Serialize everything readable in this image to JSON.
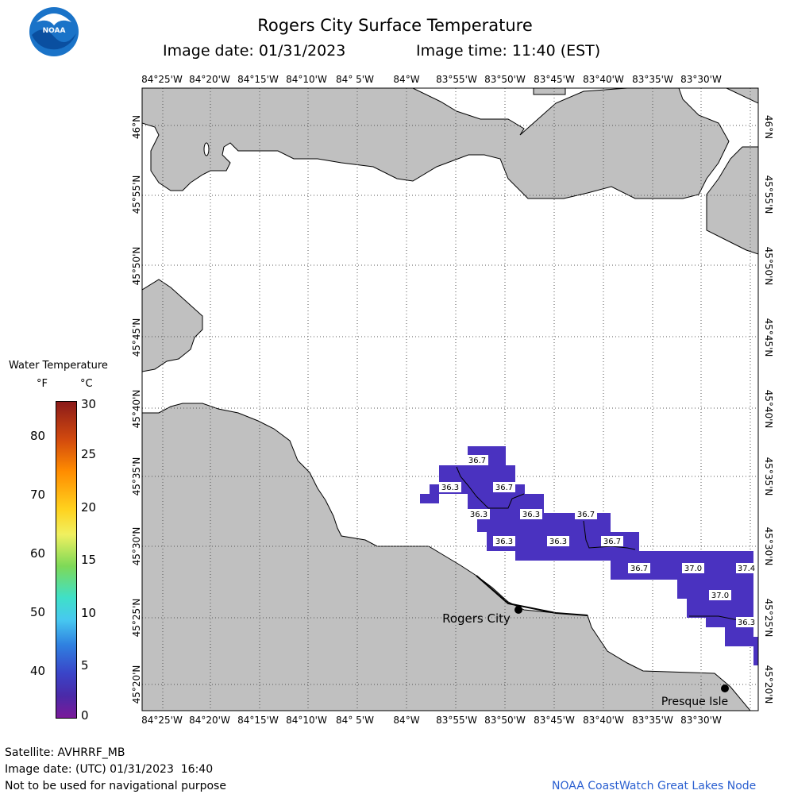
{
  "header": {
    "logo_text": "NOAA",
    "title": "Rogers City Surface Temperature",
    "image_date": "Image date: 01/31/2023",
    "image_time": "Image time: 11:40 (EST)"
  },
  "map": {
    "lon_labels": [
      "84°25'W",
      "84°20'W",
      "84°15'W",
      "84°10'W",
      "84° 5'W",
      "84°W",
      "83°55'W",
      "83°50'W",
      "83°45'W",
      "83°40'W",
      "83°35'W",
      "83°30'W"
    ],
    "lat_labels": [
      "46°N",
      "45°55'N",
      "45°50'N",
      "45°45'N",
      "45°40'N",
      "45°35'N",
      "45°30'N",
      "45°25'N",
      "45°20'N"
    ],
    "places": [
      {
        "name": "Rogers City"
      },
      {
        "name": "Presque Isle"
      }
    ],
    "temperature_labels": [
      "36.7",
      "36.3",
      "36.7",
      "36.3",
      "36.3",
      "36.7",
      "36.3",
      "36.3",
      "36.7",
      "36.7",
      "37.0",
      "37.4",
      "37.0",
      "36.3"
    ],
    "colors": {
      "land": "#c0c0c0",
      "water_cells": "#4a32c0",
      "water_cells_dark": "#5030b8",
      "grid": "#555555"
    }
  },
  "legend": {
    "title": "Water Temperature",
    "unit_f": "°F",
    "unit_c": "°C",
    "f_ticks": [
      "80",
      "70",
      "60",
      "50",
      "40"
    ],
    "c_ticks": [
      "30",
      "25",
      "20",
      "15",
      "10",
      "5",
      "0"
    ]
  },
  "footer": {
    "satellite": "Satellite: AVHRRF_MB",
    "image_date_utc": "Image date: (UTC) 01/31/2023  16:40",
    "disclaimer": "Not to be used for navigational purpose",
    "credit": "NOAA CoastWatch Great Lakes Node"
  }
}
